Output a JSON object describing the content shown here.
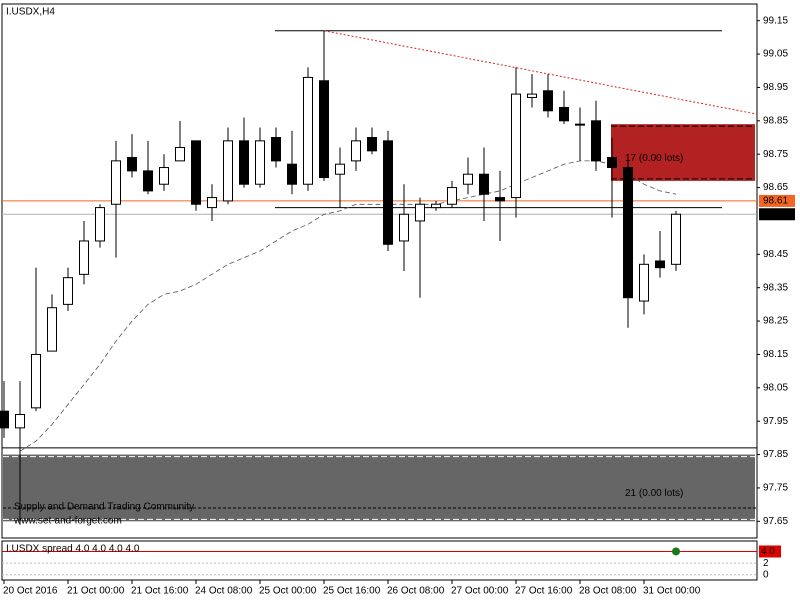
{
  "chart_data": {
    "type": "candlestick",
    "title": "I.USDX,H4",
    "categories": [
      "20 Oct 2016",
      null,
      null,
      null,
      "21 Oct 00:00",
      null,
      null,
      null,
      "21 Oct 16:00",
      null,
      null,
      null,
      "24 Oct 08:00",
      null,
      null,
      null,
      "25 Oct 00:00",
      null,
      null,
      null,
      "25 Oct 16:00",
      null,
      null,
      null,
      "26 Oct 08:00",
      null,
      null,
      null,
      "27 Oct 00:00",
      null,
      null,
      null,
      "27 Oct 16:00",
      null,
      null,
      null,
      "28 Oct 08:00",
      null,
      null,
      null,
      "31 Oct 00:00",
      null,
      null
    ],
    "open": [
      97.98,
      97.93,
      97.99,
      98.16,
      98.3,
      98.39,
      98.49,
      98.6,
      98.74,
      98.7,
      98.66,
      98.73,
      98.79,
      98.59,
      98.61,
      98.79,
      98.66,
      98.8,
      98.72,
      98.66,
      98.97,
      98.69,
      98.73,
      98.8,
      98.79,
      98.49,
      98.55,
      98.59,
      98.6,
      98.66,
      98.69,
      98.62,
      98.62,
      98.92,
      98.94,
      98.89,
      98.84,
      98.85,
      98.74,
      98.71,
      98.31,
      98.43,
      98.42
    ],
    "high": [
      98.07,
      98.07,
      98.41,
      98.33,
      98.41,
      98.55,
      98.6,
      98.79,
      98.81,
      98.79,
      98.75,
      98.85,
      98.79,
      98.66,
      98.83,
      98.86,
      98.83,
      98.83,
      98.82,
      99.01,
      99.12,
      98.77,
      98.83,
      98.83,
      98.82,
      98.66,
      98.62,
      98.61,
      98.67,
      98.74,
      98.77,
      98.7,
      99.01,
      98.99,
      98.99,
      98.94,
      98.89,
      98.91,
      98.8,
      98.73,
      98.45,
      98.52,
      98.58
    ],
    "low": [
      97.9,
      97.64,
      97.98,
      98.16,
      98.28,
      98.36,
      98.47,
      98.44,
      98.68,
      98.63,
      98.64,
      98.73,
      98.58,
      98.55,
      98.6,
      98.65,
      98.65,
      98.71,
      98.63,
      98.64,
      98.67,
      98.59,
      98.7,
      98.75,
      98.46,
      98.4,
      98.32,
      98.58,
      98.59,
      98.63,
      98.55,
      98.49,
      98.56,
      98.89,
      98.86,
      98.84,
      98.73,
      98.7,
      98.56,
      98.23,
      98.27,
      98.38,
      98.4
    ],
    "close": [
      97.93,
      97.97,
      98.15,
      98.29,
      98.38,
      98.49,
      98.59,
      98.73,
      98.7,
      98.64,
      98.71,
      98.77,
      98.6,
      98.62,
      98.79,
      98.66,
      98.79,
      98.73,
      98.66,
      98.98,
      98.68,
      98.72,
      98.79,
      98.76,
      98.48,
      98.57,
      98.6,
      98.6,
      98.65,
      98.69,
      98.63,
      98.61,
      98.93,
      98.93,
      98.88,
      98.85,
      98.84,
      98.73,
      98.71,
      98.32,
      98.42,
      98.41,
      98.57
    ],
    "ma": [
      null,
      97.86,
      97.89,
      97.94,
      98.0,
      98.06,
      98.12,
      98.19,
      98.25,
      98.3,
      98.33,
      98.34,
      98.36,
      98.39,
      98.42,
      98.44,
      98.46,
      98.49,
      98.52,
      98.54,
      98.57,
      98.58,
      98.6,
      98.6,
      98.6,
      98.6,
      98.6,
      98.6,
      98.61,
      98.62,
      98.63,
      98.64,
      98.66,
      98.68,
      98.7,
      98.72,
      98.73,
      98.73,
      98.72,
      98.69,
      98.66,
      98.64,
      98.63
    ],
    "trendline": [
      99.12,
      98.87
    ],
    "ylim": [
      97.6,
      99.2
    ],
    "yticks": [
      99.15,
      99.05,
      98.95,
      98.85,
      98.75,
      98.65,
      98.45,
      98.35,
      98.25,
      98.15,
      98.05,
      97.95,
      97.85,
      97.75,
      97.65
    ],
    "levels": [
      {
        "value": 99.12,
        "color": "#000000",
        "style": "segment"
      },
      {
        "value": 98.59,
        "color": "#000000",
        "style": "segment"
      },
      {
        "value": 97.87,
        "color": "#000000",
        "style": "full"
      },
      {
        "value": 98.61,
        "color": "#f26522",
        "style": "full"
      },
      {
        "value": 98.57,
        "color": "#b0b0b0",
        "style": "full"
      }
    ],
    "price_labels": [
      {
        "value": 98.61,
        "color": "#f26522"
      },
      {
        "value": 98.57,
        "color": "#000000"
      }
    ],
    "zones": [
      {
        "top": 98.84,
        "bottom": 98.67,
        "color": "#b22222",
        "label": "17 (0.00 lots)",
        "span": "right"
      },
      {
        "top": 97.85,
        "bottom": 97.65,
        "color": "#666666",
        "label": "21 (0.00 lots)",
        "span": "full"
      }
    ],
    "watermark": [
      "Supply and Demand Trading Community",
      "www.set-and-forget.com"
    ],
    "spread": {
      "title": "I.USDX spread 4.0 4.0 4.0 4.0",
      "value": 4,
      "value_label": "4.0",
      "ylim": [
        -0.9,
        5.8
      ],
      "yticks": [
        2,
        0
      ]
    }
  }
}
